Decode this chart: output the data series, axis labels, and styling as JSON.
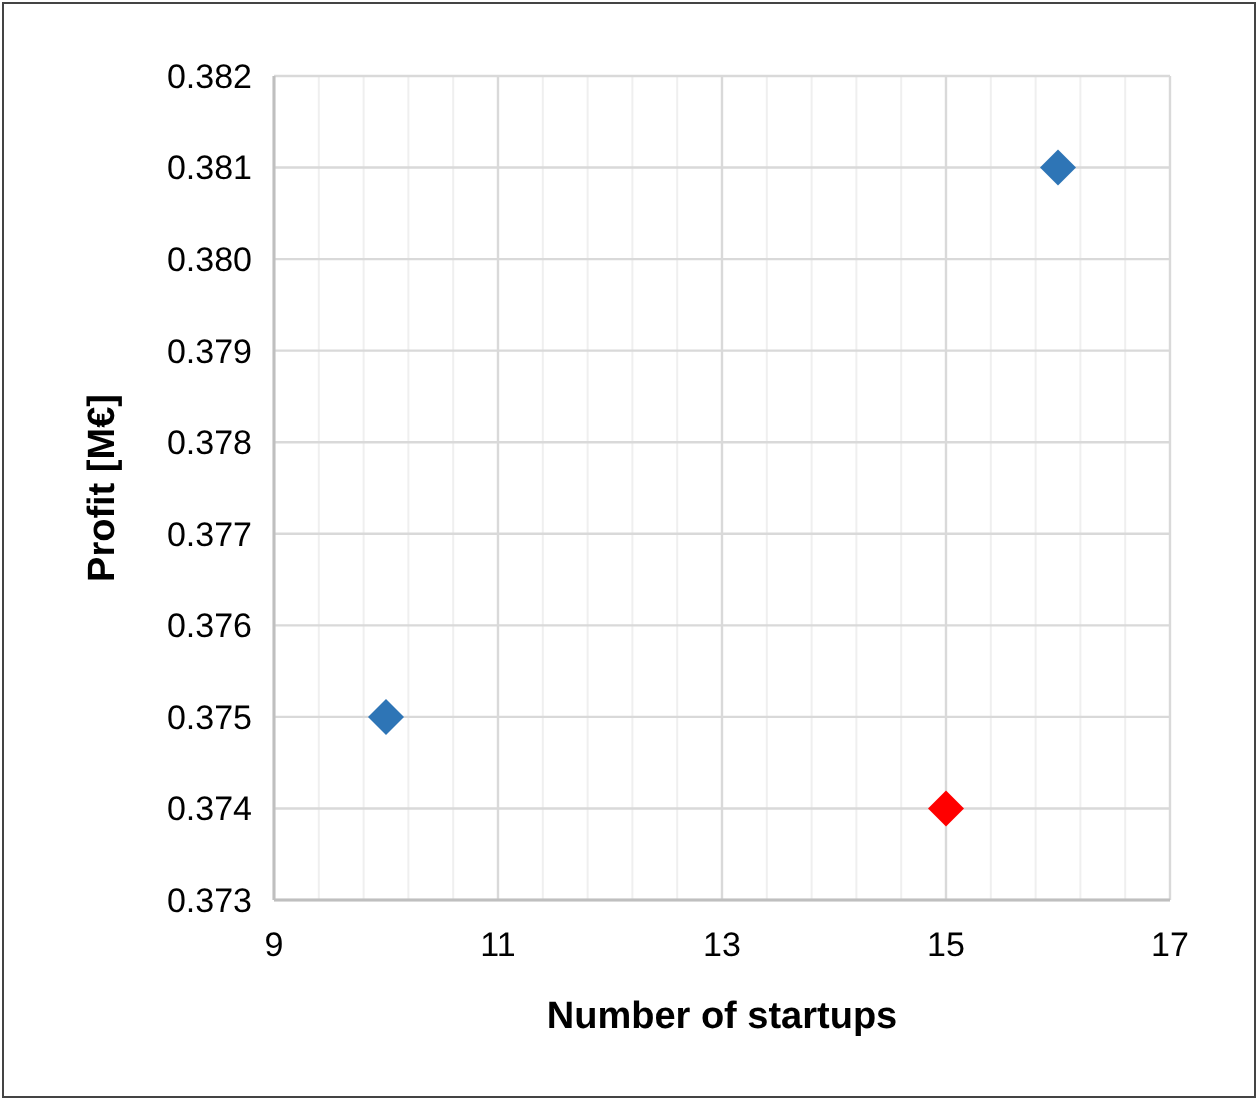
{
  "chart_data": {
    "type": "scatter",
    "xlabel": "Number of startups",
    "ylabel": "Profit [M€]",
    "x": [
      10,
      15,
      16
    ],
    "series": [
      {
        "values": [
          0.375,
          0.374,
          0.381
        ],
        "colors": [
          "#2e75b6",
          "#ff0000",
          "#2e75b6"
        ]
      }
    ],
    "xlim": [
      9,
      17
    ],
    "ylim": [
      0.373,
      0.382
    ],
    "xticks": [
      9,
      {
        "value": 9.4,
        "label": null
      },
      {
        "value": 9.8,
        "label": null
      },
      {
        "value": 10.2,
        "label": null
      },
      {
        "value": 10.6,
        "label": null
      },
      11,
      {
        "value": 11.4,
        "label": null
      },
      {
        "value": 11.8,
        "label": null
      },
      {
        "value": 12.2,
        "label": null
      },
      {
        "value": 12.6,
        "label": null
      },
      13,
      {
        "value": 13.4,
        "label": null
      },
      {
        "value": 13.8,
        "label": null
      },
      {
        "value": 14.2,
        "label": null
      },
      {
        "value": 14.6,
        "label": null
      },
      15,
      {
        "value": 15.4,
        "label": null
      },
      {
        "value": 15.8,
        "label": null
      },
      {
        "value": 16.2,
        "label": null
      },
      {
        "value": 16.6,
        "label": null
      },
      17
    ],
    "yticks": [
      {
        "value": 0.373,
        "label": "0.373"
      },
      {
        "value": 0.374,
        "label": "0.374"
      },
      {
        "value": 0.375,
        "label": "0.375"
      },
      {
        "value": 0.376,
        "label": "0.376"
      },
      {
        "value": 0.377,
        "label": "0.377"
      },
      {
        "value": 0.378,
        "label": "0.378"
      },
      {
        "value": 0.379,
        "label": "0.379"
      },
      {
        "value": 0.38,
        "label": "0.380"
      },
      {
        "value": 0.381,
        "label": "0.381"
      },
      {
        "value": 0.382,
        "label": "0.382"
      }
    ],
    "grid": true,
    "marker": "diamond"
  }
}
